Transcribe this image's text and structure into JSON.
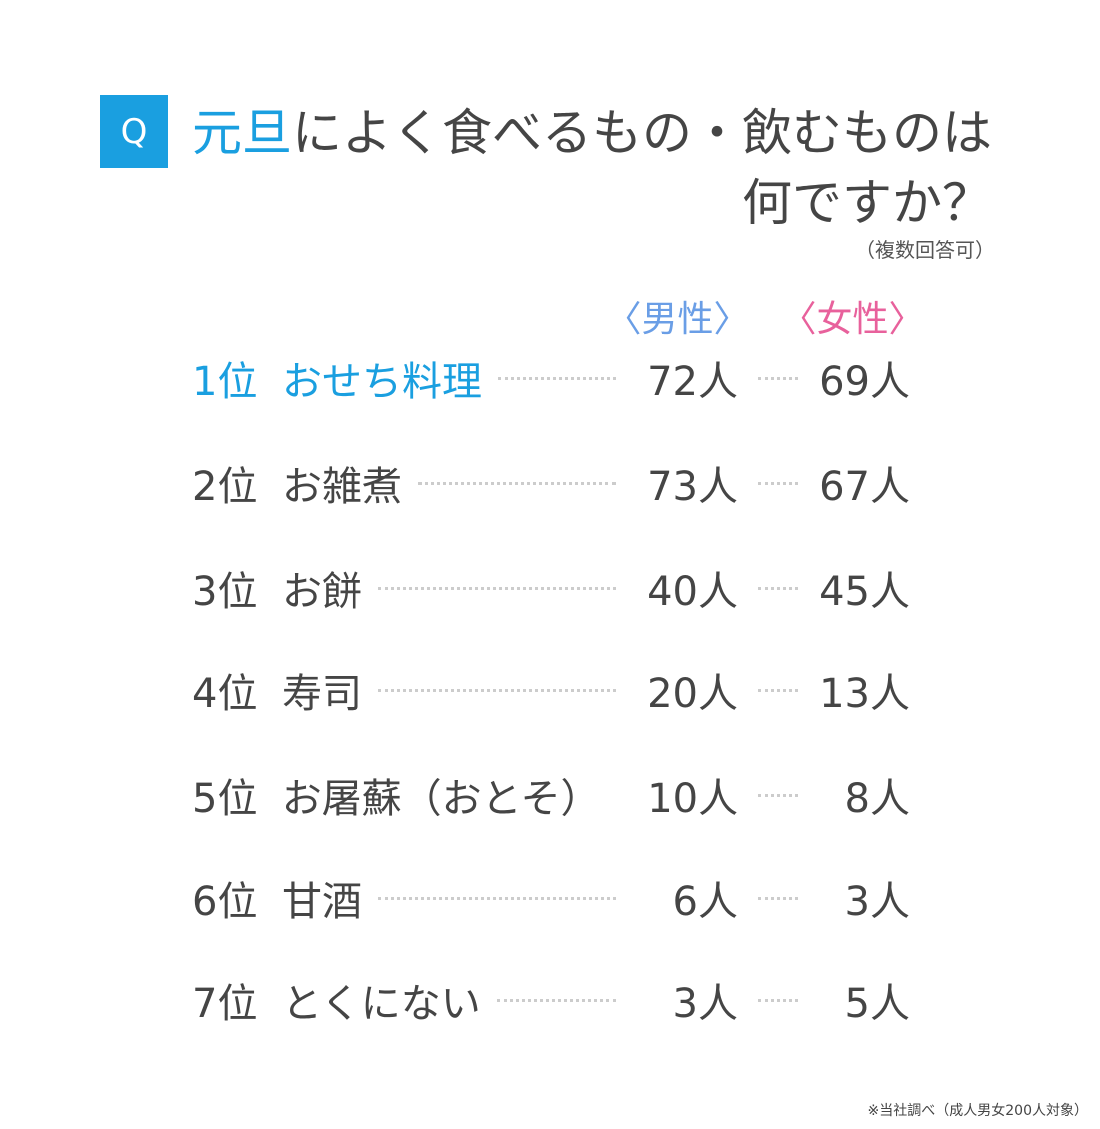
{
  "header": {
    "badge": "Q",
    "title_highlight": "元旦",
    "title_line1": "によく食べるもの・飲むものは",
    "title_line2": "何ですか？",
    "note": "（複数回答可）"
  },
  "columns": {
    "male": "〈男性〉",
    "female": "〈女性〉"
  },
  "table": {
    "rows": [
      [
        "1位",
        "おせち料理",
        "72人",
        "69人"
      ],
      [
        "2位",
        "お雑煮",
        "73人",
        "67人"
      ],
      [
        "3位",
        "お餅",
        "40人",
        "45人"
      ],
      [
        "4位",
        "寿司",
        "20人",
        "13人"
      ],
      [
        "5位",
        "お屠蘇（おとそ）",
        "10人",
        "8人"
      ],
      [
        "6位",
        "甘酒",
        "6人",
        "3人"
      ],
      [
        "7位",
        "とくにない",
        "3人",
        "5人"
      ]
    ]
  },
  "footer": "※当社調べ（成人男女200人対象）"
}
